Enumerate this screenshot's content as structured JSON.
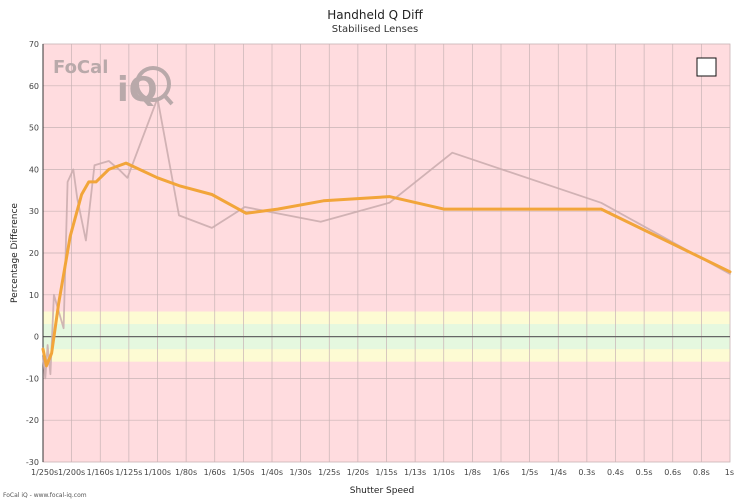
{
  "footer_text": "FoCal iQ - www.focal-iq.com",
  "logo": {
    "brand": "FoCal",
    "sub": "iQ"
  },
  "colors": {
    "plot_background": "#ffdcdf",
    "band_outer": "#fdfbd3",
    "band_inner": "#e5f8df",
    "grid": "#c8b3b5",
    "zero_line": "#666666",
    "smooth_line": "#f2a53a",
    "raw_line": "#c9aaad"
  },
  "chart_data": {
    "type": "line",
    "title": "Handheld Q Diff",
    "subtitle": "Stabilised Lenses",
    "xlabel": "Shutter Speed",
    "ylabel": "Percentage Difference",
    "ylim": [
      -30,
      70
    ],
    "y_ticks": [
      -30,
      -20,
      -10,
      0,
      10,
      20,
      30,
      40,
      50,
      60,
      70
    ],
    "x_categories": [
      "1/250s",
      "1/200s",
      "1/160s",
      "1/125s",
      "1/100s",
      "1/80s",
      "1/60s",
      "1/50s",
      "1/40s",
      "1/30s",
      "1/25s",
      "1/20s",
      "1/15s",
      "1/13s",
      "1/10s",
      "1/8s",
      "1/6s",
      "1/5s",
      "1/4s",
      "0.3s",
      "0.4s",
      "0.5s",
      "0.6s",
      "0.8s",
      "1s"
    ],
    "grid": true,
    "tolerance_bands": [
      {
        "from": -6,
        "to": 6,
        "color": "#fdfbd3"
      },
      {
        "from": -3,
        "to": 3,
        "color": "#e5f8df"
      }
    ],
    "legend": {
      "position": "top-right",
      "entries": [
        ""
      ]
    },
    "series": [
      {
        "role": "raw",
        "color": "#c9aaad",
        "points": [
          {
            "x": 0.0,
            "y": -5
          },
          {
            "x": 0.08,
            "y": -10
          },
          {
            "x": 0.16,
            "y": -2
          },
          {
            "x": 0.26,
            "y": -9
          },
          {
            "x": 0.38,
            "y": 10
          },
          {
            "x": 0.72,
            "y": 2
          },
          {
            "x": 0.86,
            "y": 37
          },
          {
            "x": 1.06,
            "y": 40
          },
          {
            "x": 1.2,
            "y": 33
          },
          {
            "x": 1.5,
            "y": 23
          },
          {
            "x": 1.8,
            "y": 41
          },
          {
            "x": 2.3,
            "y": 42
          },
          {
            "x": 2.65,
            "y": 40
          },
          {
            "x": 2.95,
            "y": 38
          },
          {
            "x": 4.0,
            "y": 57
          },
          {
            "x": 4.75,
            "y": 29
          },
          {
            "x": 5.9,
            "y": 26
          },
          {
            "x": 7.05,
            "y": 31
          },
          {
            "x": 9.7,
            "y": 27.5
          },
          {
            "x": 12.1,
            "y": 32
          },
          {
            "x": 14.3,
            "y": 44
          },
          {
            "x": 19.5,
            "y": 32
          },
          {
            "x": 24.0,
            "y": 15
          }
        ]
      },
      {
        "role": "smoothed",
        "color": "#f2a53a",
        "points": [
          {
            "x": 0.0,
            "y": -3
          },
          {
            "x": 0.12,
            "y": -7
          },
          {
            "x": 0.3,
            "y": -4
          },
          {
            "x": 0.55,
            "y": 8
          },
          {
            "x": 0.95,
            "y": 24
          },
          {
            "x": 1.35,
            "y": 34
          },
          {
            "x": 1.6,
            "y": 37
          },
          {
            "x": 1.85,
            "y": 37
          },
          {
            "x": 2.3,
            "y": 40
          },
          {
            "x": 2.9,
            "y": 41.5
          },
          {
            "x": 4.0,
            "y": 38
          },
          {
            "x": 4.8,
            "y": 36
          },
          {
            "x": 5.9,
            "y": 34
          },
          {
            "x": 7.1,
            "y": 29.5
          },
          {
            "x": 8.2,
            "y": 30.5
          },
          {
            "x": 9.8,
            "y": 32.5
          },
          {
            "x": 12.1,
            "y": 33.5
          },
          {
            "x": 14.0,
            "y": 30.5
          },
          {
            "x": 19.5,
            "y": 30.5
          },
          {
            "x": 24.0,
            "y": 15.5
          }
        ]
      }
    ]
  }
}
